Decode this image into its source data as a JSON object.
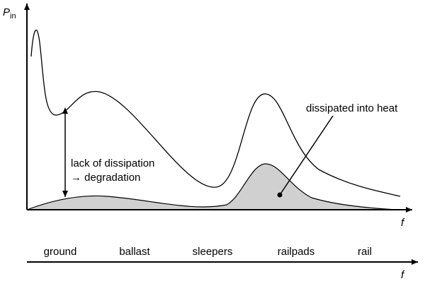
{
  "axes": {
    "y_label": {
      "symbol": "P",
      "subscript": "in"
    },
    "x_label": "f"
  },
  "annotations": {
    "lack_line1": "lack of dissipation",
    "lack_line2": "→ degradation",
    "heat": "dissipated into heat"
  },
  "bottom_axis": {
    "labels": [
      "ground",
      "ballast",
      "sleepers",
      "railpads",
      "rail"
    ],
    "x_label": "f"
  }
}
